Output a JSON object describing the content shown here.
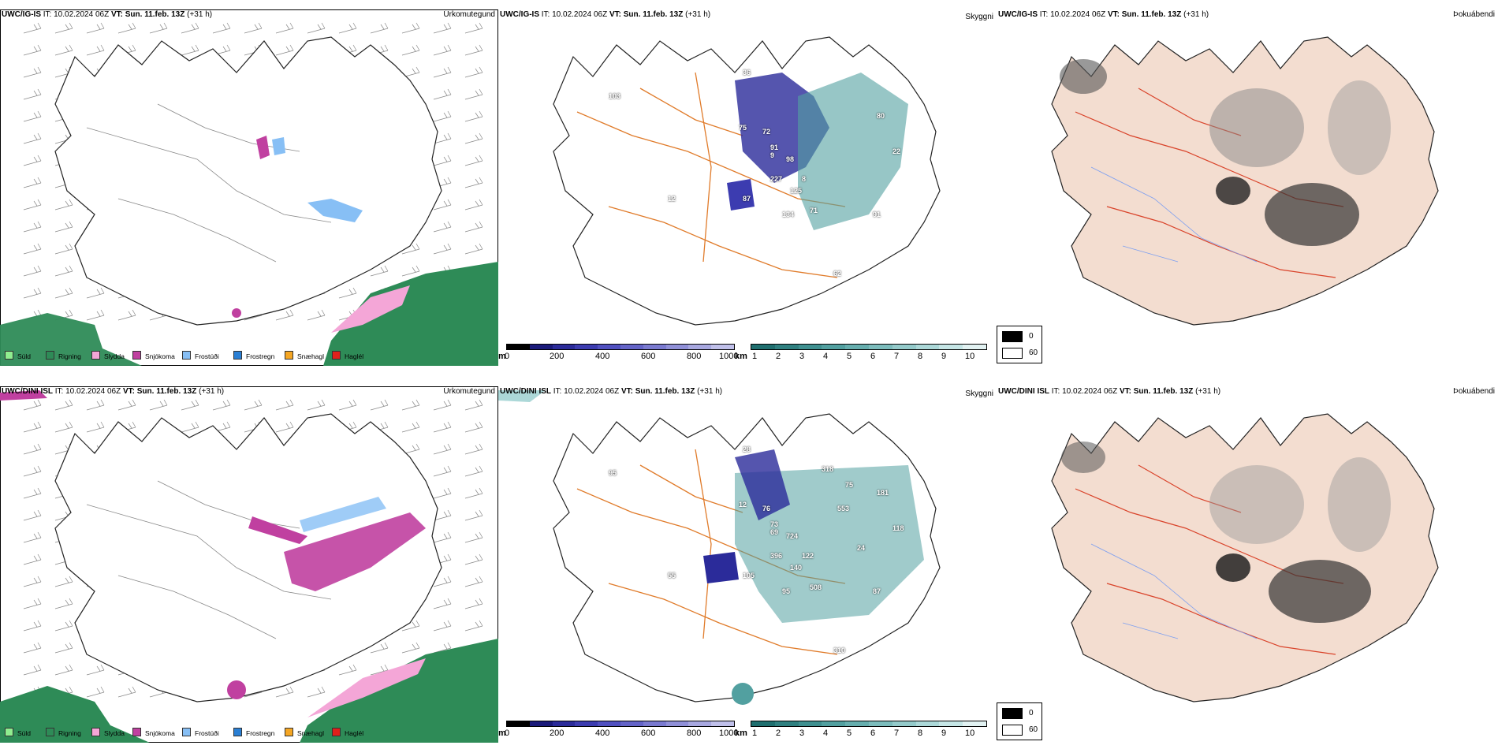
{
  "rows": [
    {
      "model": "UWC/IG-IS",
      "it_label": "IT:",
      "it_value": "10.02.2024 06Z",
      "vt_label": "VT:",
      "vt_value": "Sun. 11.feb. 13Z",
      "lead": "(+31 h)"
    },
    {
      "model": "UWC/DINI ISL",
      "it_label": "IT:",
      "it_value": "10.02.2024 06Z",
      "vt_label": "VT:",
      "vt_value": "Sun. 11.feb. 13Z",
      "lead": "(+31 h)"
    }
  ],
  "panel_titles": {
    "precip": "Úrkomutegund",
    "visibility": "Skyggni",
    "fog": "Þokuábendi"
  },
  "precip_legend": [
    {
      "label": "Súld",
      "color": "#90ee90"
    },
    {
      "label": "Rigning",
      "color": "#2e8b57"
    },
    {
      "label": "Slydda",
      "color": "#f4a6d7"
    },
    {
      "label": "Snjókoma",
      "color": "#c040a0"
    },
    {
      "label": "Frostúði",
      "color": "#87bff5"
    },
    {
      "label": "Frostregn",
      "color": "#2a7fd4"
    },
    {
      "label": "Snæhagl",
      "color": "#f5a623"
    },
    {
      "label": "Haglél",
      "color": "#e0201b"
    }
  ],
  "visibility_scale": {
    "m_unit": "m",
    "m_ticks": [
      "0",
      "200",
      "400",
      "600",
      "800",
      "1000"
    ],
    "km_unit": "km",
    "km_ticks": [
      "1",
      "2",
      "3",
      "4",
      "5",
      "6",
      "7",
      "8",
      "9",
      "10"
    ],
    "m_colors": [
      "#000000",
      "#1a1a7a",
      "#2b2b9a",
      "#3c3cb0",
      "#5050c0",
      "#6464c8",
      "#7a7ad0",
      "#9090d8",
      "#a8a8e0",
      "#c0c0ea"
    ],
    "km_colors": [
      "#1f6f6f",
      "#2f8080",
      "#3f9090",
      "#52a0a0",
      "#66aeae",
      "#7cbcbc",
      "#94caca",
      "#acd8d8",
      "#c6e6e6",
      "#e2f2f2"
    ]
  },
  "fog_legend": [
    {
      "label": "0",
      "color": "#000000"
    },
    {
      "label": "60",
      "color": "#ffffff"
    }
  ],
  "visibility_labels_row1": [
    "103",
    "75",
    "72",
    "91",
    "98",
    "9",
    "227",
    "87",
    "125",
    "8",
    "71",
    "134",
    "91",
    "80",
    "22",
    "12",
    "36",
    "62"
  ],
  "visibility_labels_row2": [
    "95",
    "12",
    "76",
    "73",
    "724",
    "69",
    "396",
    "105",
    "140",
    "122",
    "508",
    "95",
    "87",
    "181",
    "118",
    "55",
    "28",
    "310",
    "318",
    "553",
    "24",
    "75"
  ]
}
